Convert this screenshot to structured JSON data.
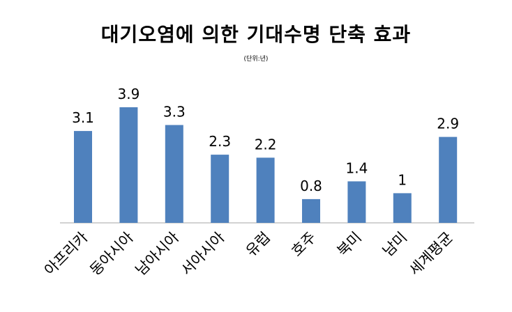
{
  "chart_data": {
    "type": "bar",
    "title": "대기오염에 의한 기대수명 단축 효과",
    "subtitle": "(단위:년)",
    "categories": [
      "아프리카",
      "동아시아",
      "남아시아",
      "서아시아",
      "유럽",
      "호주",
      "북미",
      "남미",
      "세계평균"
    ],
    "values": [
      3.1,
      3.9,
      3.3,
      2.3,
      2.2,
      0.8,
      1.4,
      1,
      2.9
    ],
    "value_labels": [
      "3.1",
      "3.9",
      "3.3",
      "2.3",
      "2.2",
      "0.8",
      "1.4",
      "1",
      "2.9"
    ],
    "xlabel": "",
    "ylabel": "",
    "ylim": [
      0,
      4.2
    ],
    "grid": false,
    "legend": "none",
    "bar_color": "#4f81bd"
  }
}
